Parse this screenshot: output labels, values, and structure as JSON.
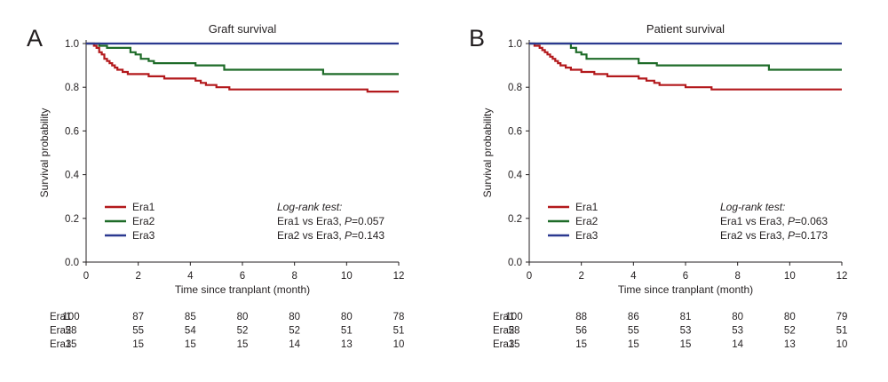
{
  "chart_data": [
    {
      "panel_label": "A",
      "type": "line",
      "title": "Graft survival",
      "xlabel": "Time since tranplant (month)",
      "ylabel": "Survival probability",
      "xlim": [
        0,
        12
      ],
      "ylim": [
        0,
        1.0
      ],
      "x_ticks": [
        "0",
        "2",
        "4",
        "6",
        "8",
        "10",
        "12"
      ],
      "y_ticks": [
        "0.0",
        "0.2",
        "0.4",
        "0.6",
        "0.8",
        "1.0"
      ],
      "grid": false,
      "legend_position": "bottom-left",
      "series": [
        {
          "name": "Era1",
          "color": "#b3191c",
          "step": true,
          "x": [
            0,
            0.3,
            0.4,
            0.5,
            0.6,
            0.7,
            0.8,
            0.9,
            1.0,
            1.1,
            1.2,
            1.4,
            1.6,
            2.0,
            2.4,
            3.0,
            4.2,
            4.4,
            4.6,
            4.8,
            5.0,
            5.3,
            5.5,
            6.0,
            7.0,
            8.0,
            9.0,
            10.0,
            10.8,
            12.0
          ],
          "y": [
            1.0,
            0.99,
            0.98,
            0.96,
            0.95,
            0.93,
            0.92,
            0.91,
            0.9,
            0.89,
            0.88,
            0.87,
            0.86,
            0.86,
            0.85,
            0.84,
            0.83,
            0.82,
            0.81,
            0.81,
            0.8,
            0.8,
            0.79,
            0.79,
            0.79,
            0.79,
            0.79,
            0.79,
            0.78,
            0.78
          ]
        },
        {
          "name": "Era2",
          "color": "#1e6b28",
          "step": true,
          "x": [
            0,
            0.5,
            0.8,
            1.5,
            1.7,
            1.9,
            2.1,
            2.4,
            2.6,
            4.2,
            5.3,
            9.1,
            12.0
          ],
          "y": [
            1.0,
            0.99,
            0.98,
            0.98,
            0.96,
            0.95,
            0.93,
            0.92,
            0.91,
            0.9,
            0.88,
            0.86,
            0.86
          ]
        },
        {
          "name": "Era3",
          "color": "#2b3990",
          "step": true,
          "x": [
            0,
            12.0
          ],
          "y": [
            1.0,
            1.0
          ]
        }
      ],
      "test": {
        "heading": "Log-rank test:",
        "lines": [
          {
            "prefix": "Era1 vs Era3, ",
            "p_label": "P",
            "value": "=0.057"
          },
          {
            "prefix": "Era2 vs Era3, ",
            "p_label": "P",
            "value": "=0.143"
          }
        ]
      },
      "risk_table": [
        {
          "label": "Era1",
          "values": [
            "100",
            "87",
            "85",
            "80",
            "80",
            "80",
            "78"
          ]
        },
        {
          "label": "Era2",
          "values": [
            "58",
            "55",
            "54",
            "52",
            "52",
            "51",
            "51"
          ]
        },
        {
          "label": "Era3",
          "values": [
            "15",
            "15",
            "15",
            "15",
            "14",
            "13",
            "10"
          ]
        }
      ]
    },
    {
      "panel_label": "B",
      "type": "line",
      "title": "Patient survival",
      "xlabel": "Time since tranplant (month)",
      "ylabel": "Survival probability",
      "xlim": [
        0,
        12
      ],
      "ylim": [
        0,
        1.0
      ],
      "x_ticks": [
        "0",
        "2",
        "4",
        "6",
        "8",
        "10",
        "12"
      ],
      "y_ticks": [
        "0.0",
        "0.2",
        "0.4",
        "0.6",
        "0.8",
        "1.0"
      ],
      "grid": false,
      "legend_position": "bottom-left",
      "series": [
        {
          "name": "Era1",
          "color": "#b3191c",
          "step": true,
          "x": [
            0,
            0.2,
            0.4,
            0.5,
            0.6,
            0.7,
            0.8,
            0.9,
            1.0,
            1.1,
            1.2,
            1.4,
            1.6,
            2.0,
            2.5,
            3.0,
            4.2,
            4.5,
            4.8,
            5.0,
            6.0,
            7.0,
            8.0,
            10.0,
            12.0
          ],
          "y": [
            1.0,
            0.99,
            0.98,
            0.97,
            0.96,
            0.95,
            0.94,
            0.93,
            0.92,
            0.91,
            0.9,
            0.89,
            0.88,
            0.87,
            0.86,
            0.85,
            0.84,
            0.83,
            0.82,
            0.81,
            0.8,
            0.79,
            0.79,
            0.79,
            0.79
          ]
        },
        {
          "name": "Era2",
          "color": "#1e6b28",
          "step": true,
          "x": [
            0,
            1.6,
            1.8,
            2.0,
            2.2,
            4.2,
            4.9,
            9.2,
            12.0
          ],
          "y": [
            1.0,
            0.98,
            0.96,
            0.95,
            0.93,
            0.91,
            0.9,
            0.88,
            0.88
          ]
        },
        {
          "name": "Era3",
          "color": "#2b3990",
          "step": true,
          "x": [
            0,
            12.0
          ],
          "y": [
            1.0,
            1.0
          ]
        }
      ],
      "test": {
        "heading": "Log-rank test:",
        "lines": [
          {
            "prefix": "Era1 vs Era3, ",
            "p_label": "P",
            "value": "=0.063"
          },
          {
            "prefix": "Era2 vs Era3, ",
            "p_label": "P",
            "value": "=0.173"
          }
        ]
      },
      "risk_table": [
        {
          "label": "Era1",
          "values": [
            "100",
            "88",
            "86",
            "81",
            "80",
            "80",
            "79"
          ]
        },
        {
          "label": "Era2",
          "values": [
            "58",
            "56",
            "55",
            "53",
            "53",
            "52",
            "51"
          ]
        },
        {
          "label": "Era3",
          "values": [
            "15",
            "15",
            "15",
            "15",
            "14",
            "13",
            "10"
          ]
        }
      ]
    }
  ]
}
